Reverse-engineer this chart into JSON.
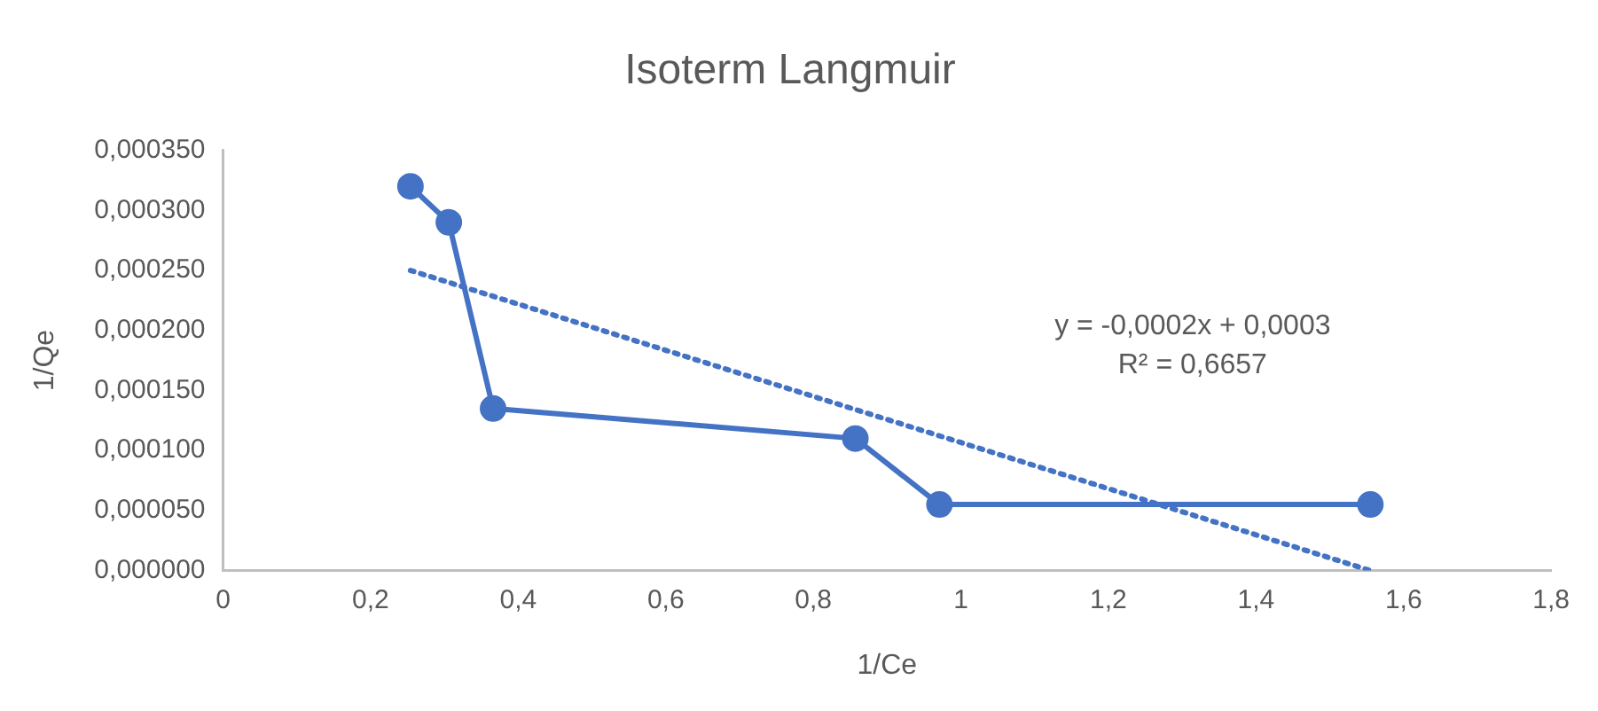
{
  "chart_data": {
    "type": "line",
    "title": "Isoterm Langmuir",
    "xlabel": "1/Ce",
    "ylabel": "1/Qe",
    "series": [
      {
        "color": "#4472c4",
        "x": [
          0.254,
          0.306,
          0.366,
          0.857,
          0.971,
          1.555
        ],
        "values": [
          0.00032,
          0.00029,
          0.000135,
          0.00011,
          5.5e-05,
          5.5e-05
        ],
        "marker": "circle",
        "line_style": "solid"
      },
      {
        "type": "line",
        "color": "#4472c4",
        "x": [
          0.254,
          1.555
        ],
        "values": [
          0.00025,
          0
        ],
        "marker": "none",
        "line_style": "dotted"
      }
    ],
    "xlim": [
      0,
      1.8
    ],
    "xticks": [
      0,
      {
        "value": 0.2,
        "label": "0,2"
      },
      {
        "value": 0.4,
        "label": "0,4"
      },
      {
        "value": 0.6,
        "label": "0,6"
      },
      {
        "value": 0.8,
        "label": "0,8"
      },
      1,
      {
        "value": 1.2,
        "label": "1,2"
      },
      {
        "value": 1.4,
        "label": "1,4"
      },
      {
        "value": 1.6,
        "label": "1,6"
      },
      {
        "value": 1.8,
        "label": "1,8"
      }
    ],
    "ylim": [
      0,
      0.00035
    ],
    "yticks": [
      {
        "value": 0,
        "label": "0,000000"
      },
      {
        "value": 5e-05,
        "label": "0,000050"
      },
      {
        "value": 0.0001,
        "label": "0,000100"
      },
      {
        "value": 0.00015,
        "label": "0,000150"
      },
      {
        "value": 0.0002,
        "label": "0,000200"
      },
      {
        "value": 0.00025,
        "label": "0,000250"
      },
      {
        "value": 0.0003,
        "label": "0,000300"
      },
      {
        "value": 0.00035,
        "label": "0,000350"
      }
    ],
    "annotations": [
      "y = -0,0002x + 0,0003",
      "R² = 0,6657"
    ],
    "grid": false,
    "legend": false
  }
}
